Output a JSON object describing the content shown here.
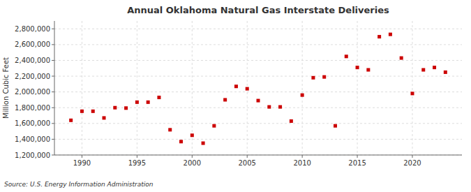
{
  "chart_data": {
    "type": "scatter",
    "title": "Annual Oklahoma Natural Gas Interstate Deliveries",
    "ylabel": "Million Cubic Feet",
    "source": "Source: U.S. Energy Information Administration",
    "color": "#cc0000",
    "marker": "square",
    "grid": true,
    "xlim": [
      1987.5,
      2024.5
    ],
    "xticks": [
      1990,
      1995,
      2000,
      2005,
      2010,
      2015,
      2020
    ],
    "ylim": [
      1200000,
      2900000
    ],
    "yticks": [
      {
        "value": 1200000,
        "label": "1,200,000"
      },
      {
        "value": 1400000,
        "label": "1,400,000"
      },
      {
        "value": 1600000,
        "label": "1,600,000"
      },
      {
        "value": 1800000,
        "label": "1,800,000"
      },
      {
        "value": 2000000,
        "label": "2,000,000"
      },
      {
        "value": 2200000,
        "label": "2,200,000"
      },
      {
        "value": 2400000,
        "label": "2,400,000"
      },
      {
        "value": 2600000,
        "label": "2,600,000"
      },
      {
        "value": 2800000,
        "label": "2,800,000"
      }
    ],
    "x": [
      1989,
      1990,
      1991,
      1992,
      1993,
      1994,
      1995,
      1996,
      1997,
      1998,
      1999,
      2000,
      2001,
      2002,
      2003,
      2004,
      2005,
      2006,
      2007,
      2008,
      2009,
      2010,
      2011,
      2012,
      2013,
      2014,
      2015,
      2016,
      2017,
      2018,
      2019,
      2020,
      2021,
      2022,
      2023
    ],
    "values": [
      1640000,
      1755000,
      1755000,
      1670000,
      1800000,
      1795000,
      1870000,
      1870000,
      1930000,
      1520000,
      1370000,
      1450000,
      1350000,
      1570000,
      1900000,
      2070000,
      2040000,
      1890000,
      1810000,
      1810000,
      1630000,
      1960000,
      2180000,
      2190000,
      1570000,
      2450000,
      2310000,
      2280000,
      2700000,
      2730000,
      2430000,
      1980000,
      2280000,
      2310000,
      2250000
    ]
  }
}
